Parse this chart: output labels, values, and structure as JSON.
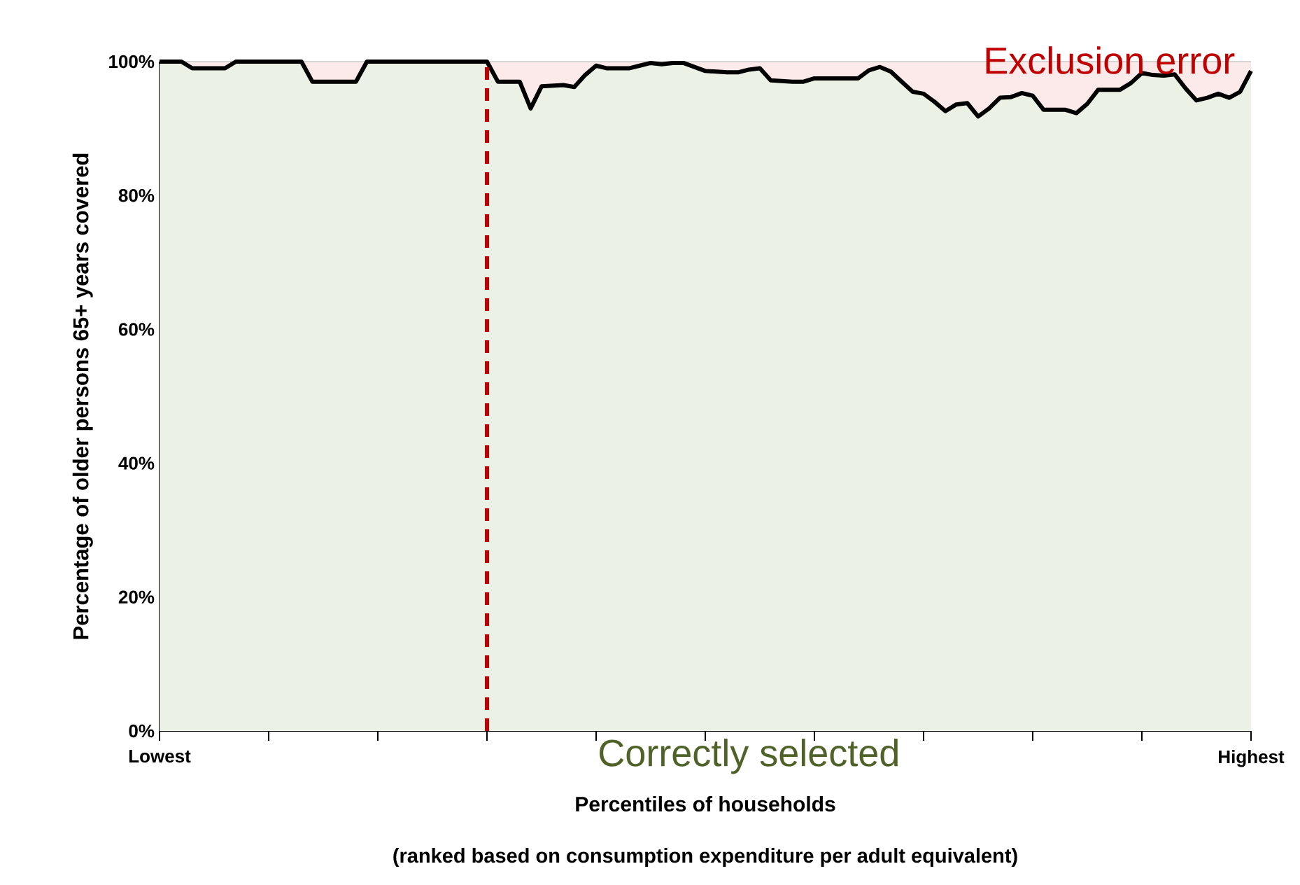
{
  "chart_data": {
    "type": "line",
    "xlabel": "Percentiles of households",
    "ylabel": "Percentage of older persons 65+ years covered",
    "annotations": [
      "(ranked based on consumption expenditure per adult equivalent)",
      "Exclusion error",
      "Correctly selected"
    ],
    "categories": [
      "Lowest",
      null,
      null,
      null,
      null,
      null,
      null,
      null,
      null,
      null,
      null,
      null,
      null,
      null,
      null,
      null,
      null,
      null,
      null,
      null,
      null,
      null,
      null,
      null,
      null,
      null,
      null,
      null,
      null,
      null,
      null,
      null,
      null,
      null,
      null,
      null,
      null,
      null,
      null,
      null,
      null,
      null,
      null,
      null,
      null,
      null,
      null,
      null,
      null,
      null,
      null,
      null,
      null,
      null,
      null,
      null,
      null,
      null,
      null,
      null,
      null,
      null,
      null,
      null,
      null,
      null,
      null,
      null,
      null,
      null,
      null,
      null,
      null,
      null,
      null,
      null,
      null,
      null,
      null,
      null,
      null,
      null,
      null,
      null,
      null,
      null,
      null,
      null,
      null,
      null,
      null,
      null,
      null,
      null,
      null,
      null,
      null,
      null,
      null,
      null,
      "Highest"
    ],
    "ylim": [
      0,
      100
    ],
    "yticks": [
      {
        "value": 0,
        "label": "0%"
      },
      {
        "value": 20,
        "label": "20%"
      },
      {
        "value": 40,
        "label": "40%"
      },
      {
        "value": 60,
        "label": "60%"
      },
      {
        "value": 80,
        "label": "80%"
      },
      {
        "value": 100,
        "label": "100%"
      }
    ],
    "grid": "y",
    "series": [
      {
        "type": "line",
        "color": "#000000",
        "values": [
          100,
          100,
          100,
          99,
          99,
          99,
          99,
          100,
          100,
          100,
          100,
          100,
          100,
          100,
          97,
          97,
          97,
          97,
          97,
          100,
          100,
          100,
          100,
          100,
          100,
          100,
          100,
          100,
          100,
          100,
          100,
          97,
          97,
          97,
          93,
          96.3,
          96.4,
          96.5,
          96.2,
          98,
          99.4,
          99,
          99,
          99,
          99.4,
          99.8,
          99.6,
          99.8,
          99.8,
          99.2,
          98.6,
          98.5,
          98.4,
          98.4,
          98.8,
          99,
          97.2,
          97.1,
          97,
          97,
          97.5,
          97.5,
          97.5,
          97.5,
          97.5,
          98.7,
          99.2,
          98.5,
          97,
          95.5,
          95.2,
          94,
          92.6,
          93.6,
          93.8,
          91.8,
          93,
          94.6,
          94.7,
          95.3,
          94.9,
          92.8,
          92.8,
          92.8,
          92.3,
          93.7,
          95.8,
          95.8,
          95.8,
          96.8,
          98.3,
          98,
          97.9,
          98.1,
          96,
          94.2,
          94.6,
          95.2,
          94.6,
          95.5,
          98.6
        ]
      }
    ]
  }
}
